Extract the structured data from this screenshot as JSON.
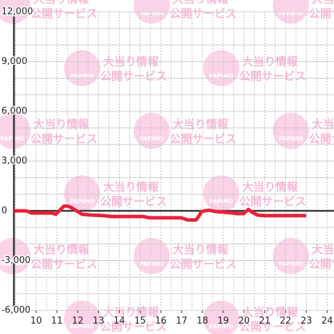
{
  "chart_data": {
    "type": "line",
    "watermark": {
      "lines": [
        "大当り情報",
        "公開サービス"
      ],
      "logo": "PAPIMO"
    },
    "x": [
      8.93,
      9.53,
      9.77,
      10.77,
      10.94,
      11.34,
      11.5,
      11.67,
      12.21,
      12.61,
      13.28,
      13.62,
      15.12,
      15.46,
      16.97,
      17.3,
      17.7,
      17.97,
      18.3,
      18.64,
      19.48,
      19.64,
      19.98,
      20.21,
      20.38,
      20.65,
      20.98,
      22.99
    ],
    "series": [
      {
        "color": "#e8203a",
        "values": [
          0,
          0,
          -130,
          -130,
          -210,
          290,
          290,
          210,
          -210,
          -250,
          -290,
          -340,
          -340,
          -420,
          -420,
          -550,
          -550,
          -40,
          40,
          -40,
          -130,
          -170,
          -170,
          80,
          -80,
          -250,
          -290,
          -290
        ]
      }
    ],
    "xlim": [
      8.93,
      24.33
    ],
    "xticks": [
      10,
      11,
      12,
      13,
      14,
      15,
      16,
      17,
      18,
      19,
      20,
      21,
      22,
      23,
      24
    ],
    "xminor": [
      9,
      9.5,
      10,
      10.5,
      11,
      11.5,
      12,
      12.5,
      13,
      13.5,
      14,
      14.5,
      15,
      15.5,
      16,
      16.5,
      17,
      17.5,
      18,
      18.5,
      19,
      19.5,
      20,
      20.5,
      21,
      21.5,
      22,
      22.5,
      23,
      23.5,
      24
    ],
    "ylim": [
      -6000,
      12000
    ],
    "yticks": [
      {
        "value": 12000,
        "label": "12,000"
      },
      {
        "value": 9000,
        "label": "9,000"
      },
      {
        "value": 6000,
        "label": "6,000"
      },
      {
        "value": 3000,
        "label": "3,000"
      },
      0,
      {
        "value": -3000,
        "label": "-3,000"
      },
      {
        "value": -6000,
        "label": "-6,000"
      }
    ],
    "yminor": [
      -5000,
      -4000,
      -2000,
      -1000,
      1000,
      2000,
      4000,
      5000,
      7000,
      8000,
      10000,
      11000
    ],
    "grid": true
  }
}
